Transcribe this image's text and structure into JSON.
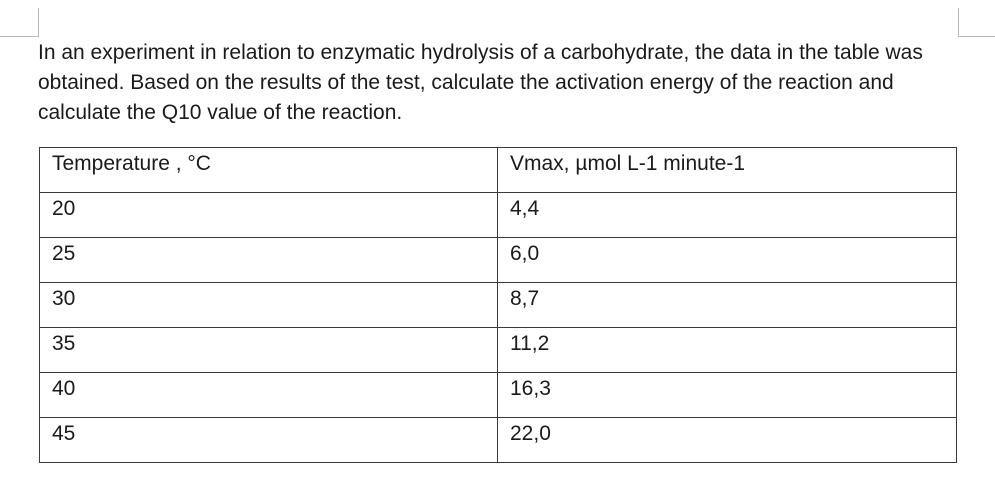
{
  "question": "In an experiment in relation to enzymatic hydrolysis of a carbohydrate, the data in the table was obtained. Based on the results of the test, calculate the activation energy of the reaction and calculate the Q10 value of the reaction.",
  "table": {
    "headers": [
      "Temperature , °C",
      "Vmax, µmol L-1 minute-1"
    ],
    "rows": [
      [
        "20",
        "4,4"
      ],
      [
        "25",
        "6,0"
      ],
      [
        "30",
        "8,7"
      ],
      [
        "35",
        "11,2"
      ],
      [
        "40",
        "16,3"
      ],
      [
        "45",
        "22,0"
      ]
    ]
  }
}
